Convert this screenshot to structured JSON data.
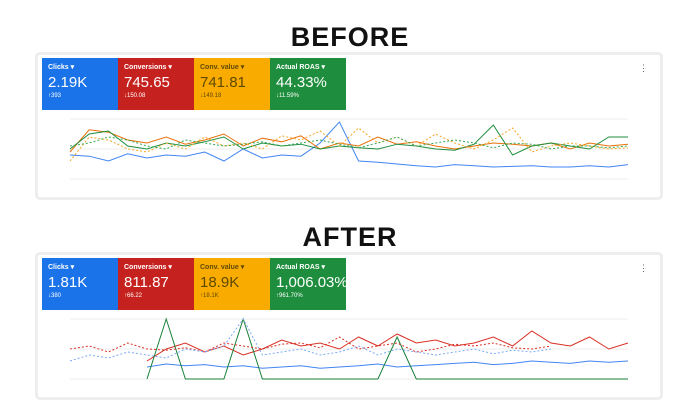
{
  "sections": [
    {
      "heading": "BEFORE",
      "tiles": [
        {
          "label": "Clicks ▾",
          "value": "2.19K",
          "change": "↑393",
          "color": "#1a73e8",
          "text": "#fff"
        },
        {
          "label": "Conversions ▾",
          "value": "745.65",
          "change": "↓150.08",
          "color": "#c5221f",
          "text": "#fff"
        },
        {
          "label": "Conv. value ▾",
          "value": "741.81",
          "change": "↓149.18",
          "color": "#f9ab00",
          "text": "#5f4a00"
        },
        {
          "label": "Actual ROAS ▾",
          "value": "44.33%",
          "change": "↓11.59%",
          "color": "#1e8e3e",
          "text": "#fff"
        }
      ],
      "series": [
        {
          "color": "#4285f4",
          "dash": false,
          "values": [
            40,
            38,
            30,
            42,
            35,
            40,
            38,
            45,
            30,
            50,
            35,
            40,
            38,
            60,
            95,
            30,
            28,
            25,
            22,
            20,
            24,
            22,
            20,
            21,
            22,
            20,
            20,
            22,
            20,
            24
          ]
        },
        {
          "color": "#e8710a",
          "dash": false,
          "values": [
            45,
            82,
            78,
            65,
            60,
            70,
            58,
            65,
            75,
            55,
            68,
            62,
            72,
            50,
            60,
            55,
            70,
            58,
            62,
            55,
            50,
            55,
            60,
            58,
            55,
            60,
            50,
            60,
            55,
            58
          ]
        },
        {
          "color": "#1e8e3e",
          "dash": false,
          "values": [
            50,
            75,
            80,
            55,
            50,
            60,
            55,
            62,
            70,
            50,
            60,
            55,
            58,
            50,
            55,
            52,
            50,
            58,
            55,
            50,
            48,
            58,
            90,
            40,
            55,
            60,
            55,
            50,
            70,
            70
          ]
        },
        {
          "color": "#f5a623",
          "dash": true,
          "values": [
            30,
            70,
            65,
            50,
            45,
            60,
            50,
            70,
            55,
            60,
            50,
            72,
            65,
            80,
            55,
            85,
            60,
            70,
            55,
            75,
            60,
            50,
            65,
            85,
            45,
            55,
            60,
            55,
            50,
            52
          ]
        },
        {
          "color": "#34a853",
          "dash": true,
          "values": [
            55,
            60,
            70,
            65,
            55,
            50,
            65,
            60,
            55,
            58,
            62,
            55,
            60,
            65,
            58,
            52,
            60,
            70,
            55,
            60,
            65,
            60,
            52,
            60,
            58,
            50,
            55,
            55,
            52,
            55
          ]
        }
      ]
    },
    {
      "heading": "AFTER",
      "tiles": [
        {
          "label": "Clicks ▾",
          "value": "1.81K",
          "change": "↓380",
          "color": "#1a73e8",
          "text": "#fff"
        },
        {
          "label": "Conversions ▾",
          "value": "811.87",
          "change": "↑66.22",
          "color": "#c5221f",
          "text": "#fff"
        },
        {
          "label": "Conv. value ▾",
          "value": "18.9K",
          "change": "↑18.1K",
          "color": "#f9ab00",
          "text": "#5f4a00"
        },
        {
          "label": "Actual ROAS ▾",
          "value": "1,006.03%",
          "change": "↑961.70%",
          "color": "#1e8e3e",
          "text": "#fff"
        }
      ],
      "series": [
        {
          "color": "#4285f4",
          "dash": false,
          "values": [
            null,
            null,
            null,
            null,
            20,
            25,
            22,
            24,
            20,
            22,
            18,
            20,
            22,
            18,
            20,
            22,
            25,
            20,
            22,
            24,
            26,
            28,
            24,
            26,
            30,
            28,
            26,
            30,
            28,
            30
          ]
        },
        {
          "color": "#d93025",
          "dash": false,
          "values": [
            null,
            null,
            null,
            null,
            30,
            50,
            60,
            45,
            55,
            40,
            50,
            65,
            55,
            60,
            50,
            70,
            55,
            75,
            60,
            65,
            55,
            60,
            70,
            55,
            80,
            60,
            55,
            70,
            50,
            60
          ]
        },
        {
          "color": "#188038",
          "dash": false,
          "values": [
            null,
            null,
            null,
            null,
            0,
            100,
            0,
            0,
            0,
            100,
            0,
            0,
            0,
            0,
            0,
            0,
            0,
            70,
            0,
            0,
            0,
            0,
            0,
            0,
            0,
            0,
            0,
            0,
            0,
            0
          ]
        },
        {
          "color": "#d93025",
          "dash": true,
          "values": [
            50,
            55,
            45,
            60,
            50,
            48,
            52,
            45,
            60,
            55,
            50,
            58,
            60,
            52,
            70,
            50,
            55,
            60,
            45,
            50,
            58,
            55,
            60,
            52,
            50,
            55,
            null,
            null,
            null,
            null
          ]
        },
        {
          "color": "#7baaf7",
          "dash": true,
          "values": [
            30,
            40,
            35,
            45,
            40,
            35,
            50,
            45,
            55,
            100,
            40,
            45,
            50,
            40,
            45,
            55,
            40,
            50,
            45,
            40,
            45,
            50,
            42,
            48,
            45,
            50,
            null,
            null,
            null,
            null
          ]
        }
      ]
    }
  ],
  "menu_icon": "more-vert-icon"
}
